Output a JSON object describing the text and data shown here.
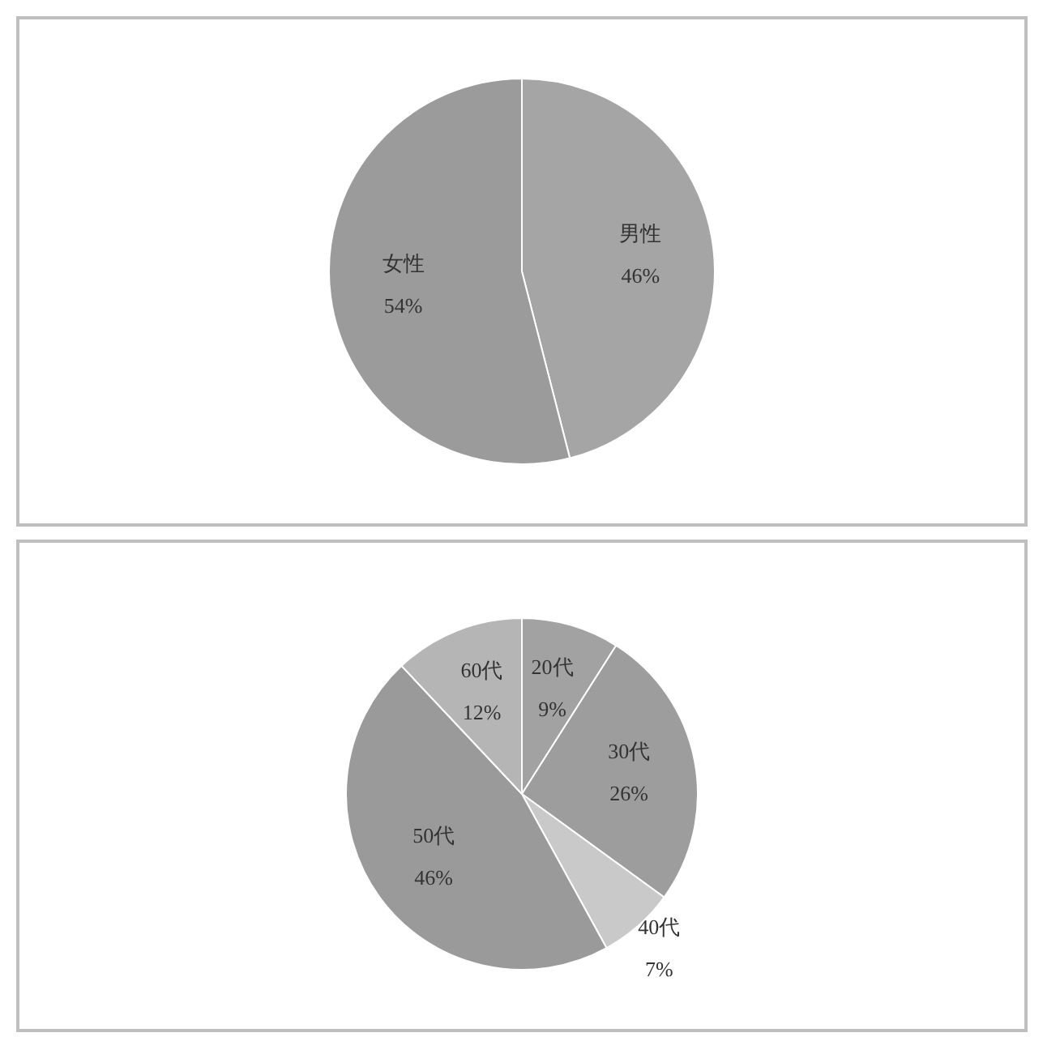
{
  "chart_data": [
    {
      "type": "pie",
      "categories": [
        "男性",
        "女性"
      ],
      "values": [
        46,
        54
      ],
      "colors": [
        "#a5a5a5",
        "#9b9b9b"
      ],
      "value_labels": [
        "46%",
        "54%"
      ]
    },
    {
      "type": "pie",
      "categories": [
        "20代",
        "30代",
        "40代",
        "50代",
        "60代"
      ],
      "values": [
        9,
        26,
        7,
        46,
        12
      ],
      "colors": [
        "#a2a2a2",
        "#9d9d9d",
        "#c9c9c9",
        "#9a9a9a",
        "#b5b5b5"
      ],
      "value_labels": [
        "9%",
        "26%",
        "7%",
        "46%",
        "12%"
      ]
    }
  ]
}
